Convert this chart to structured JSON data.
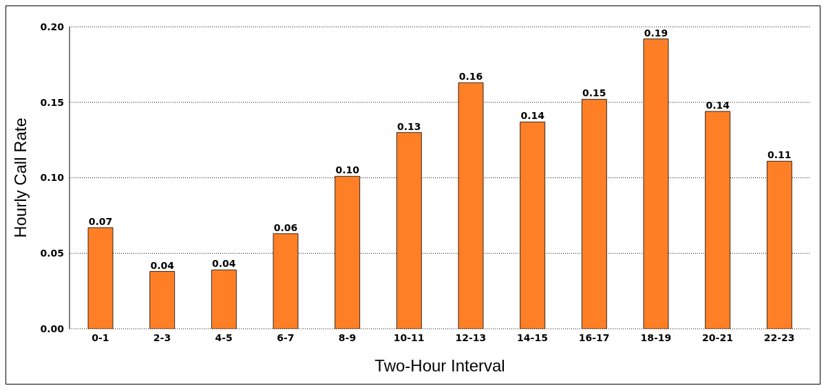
{
  "chart_data": {
    "type": "bar",
    "xlabel": "Two-Hour Interval",
    "ylabel": "Hourly Call Rate",
    "categories": [
      "0-1",
      "2-3",
      "4-5",
      "6-7",
      "8-9",
      "10-11",
      "12-13",
      "14-15",
      "16-17",
      "18-19",
      "20-21",
      "22-23"
    ],
    "values": [
      0.067,
      0.038,
      0.039,
      0.063,
      0.101,
      0.13,
      0.163,
      0.137,
      0.152,
      0.192,
      0.144,
      0.111
    ],
    "value_labels": [
      "0.07",
      "0.04",
      "0.04",
      "0.06",
      "0.10",
      "0.13",
      "0.16",
      "0.14",
      "0.15",
      "0.19",
      "0.14",
      "0.11"
    ],
    "color": "#ff7f27",
    "ylim": [
      0,
      0.2
    ],
    "yticks": [
      {
        "value": 0,
        "label": "0.00"
      },
      {
        "value": 0.05,
        "label": "0.05"
      },
      {
        "value": 0.1,
        "label": "0.10"
      },
      {
        "value": 0.15,
        "label": "0.15"
      },
      {
        "value": 0.2,
        "label": "0.20"
      }
    ],
    "grid": "y"
  }
}
